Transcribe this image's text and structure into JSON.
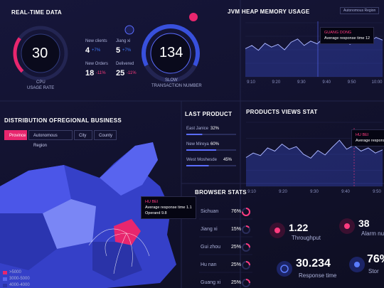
{
  "realtime": {
    "title": "REAL-TIME DATA",
    "cpu": {
      "value": 30,
      "ylim": [
        0,
        100
      ],
      "label_1": "CPU",
      "label_2": "USAGE RATE"
    },
    "stats": [
      {
        "name": "New clients",
        "value": "4",
        "change": "+7%"
      },
      {
        "name": "Jiang xi",
        "value": "5",
        "change": "+7%"
      },
      {
        "name": "New Orders",
        "value": "18",
        "change": "-11%"
      },
      {
        "name": "Delivered",
        "value": "25",
        "change": "-11%"
      }
    ],
    "slow": {
      "value": "134",
      "label_1": "SLOW",
      "label_2": "TRANSACTION NUMBER"
    }
  },
  "jvm": {
    "title": "JVM HEAP MEMORY USAGE",
    "dropdown": "Autonomous Region",
    "tooltip": {
      "title": "GUANG DONG",
      "label": "Average response time",
      "value": "12"
    },
    "chart": {
      "type": "area",
      "ylim": [
        0,
        100
      ],
      "values": [
        52,
        58,
        49,
        62,
        55,
        60,
        50,
        64,
        70,
        58,
        66,
        61,
        72,
        63,
        69,
        74,
        60,
        67,
        71,
        65,
        73,
        68
      ],
      "xticks": [
        "9:10",
        "9:20",
        "9:30",
        "9:40",
        "9:50",
        "10:00"
      ]
    }
  },
  "distribution": {
    "title": "DISTRIBUTION OFREGIONAL BUSINESS",
    "tabs": [
      "Province",
      "Autonomous Region",
      "City",
      "County"
    ],
    "tooltip": {
      "title": "HU BEI",
      "rows": [
        [
          "Average response time",
          "1.1"
        ],
        [
          "Operand",
          "9.8"
        ]
      ]
    },
    "legend": [
      ">5000",
      "3000-5000",
      "4000-4000"
    ]
  },
  "last_product": {
    "title": "LAST PRODUCT",
    "items": [
      {
        "name": "East Janice",
        "value": 32,
        "label": "32%"
      },
      {
        "name": "New Mireya",
        "value": 60,
        "label": "60%"
      },
      {
        "name": "West Moshesde",
        "value": 45,
        "label": "45%"
      }
    ]
  },
  "products_views": {
    "title": "PRODUCTS VIEWS STAT",
    "tooltip": {
      "title": "HU BEI",
      "label": "Average response time"
    },
    "chart": {
      "type": "area",
      "ylim": [
        0,
        100
      ],
      "values": [
        45,
        52,
        48,
        60,
        55,
        66,
        58,
        62,
        50,
        44,
        56,
        49,
        61,
        72,
        58,
        64,
        55,
        60,
        52,
        57
      ],
      "xticks": [
        "9:10",
        "9:20",
        "9:30",
        "9:40",
        "9:50"
      ]
    }
  },
  "browser_stats": {
    "title": "BROWSER STATS",
    "rows": [
      {
        "name": "Sichuan",
        "value": 76,
        "label": "76%"
      },
      {
        "name": "Jiang xi",
        "value": 15,
        "label": "15%"
      },
      {
        "name": "Gui zhou",
        "value": 25,
        "label": "25%"
      },
      {
        "name": "Hu nan",
        "value": 25,
        "label": "25%"
      },
      {
        "name": "Guang xi",
        "value": 25,
        "label": "25%"
      }
    ]
  },
  "kpis": [
    {
      "value": "1.22",
      "label": "Throughput"
    },
    {
      "value": "38",
      "label": "Alarm nu"
    },
    {
      "value": "30.234",
      "label": "Response time"
    },
    {
      "value": "76%",
      "label": "Stor"
    }
  ]
}
